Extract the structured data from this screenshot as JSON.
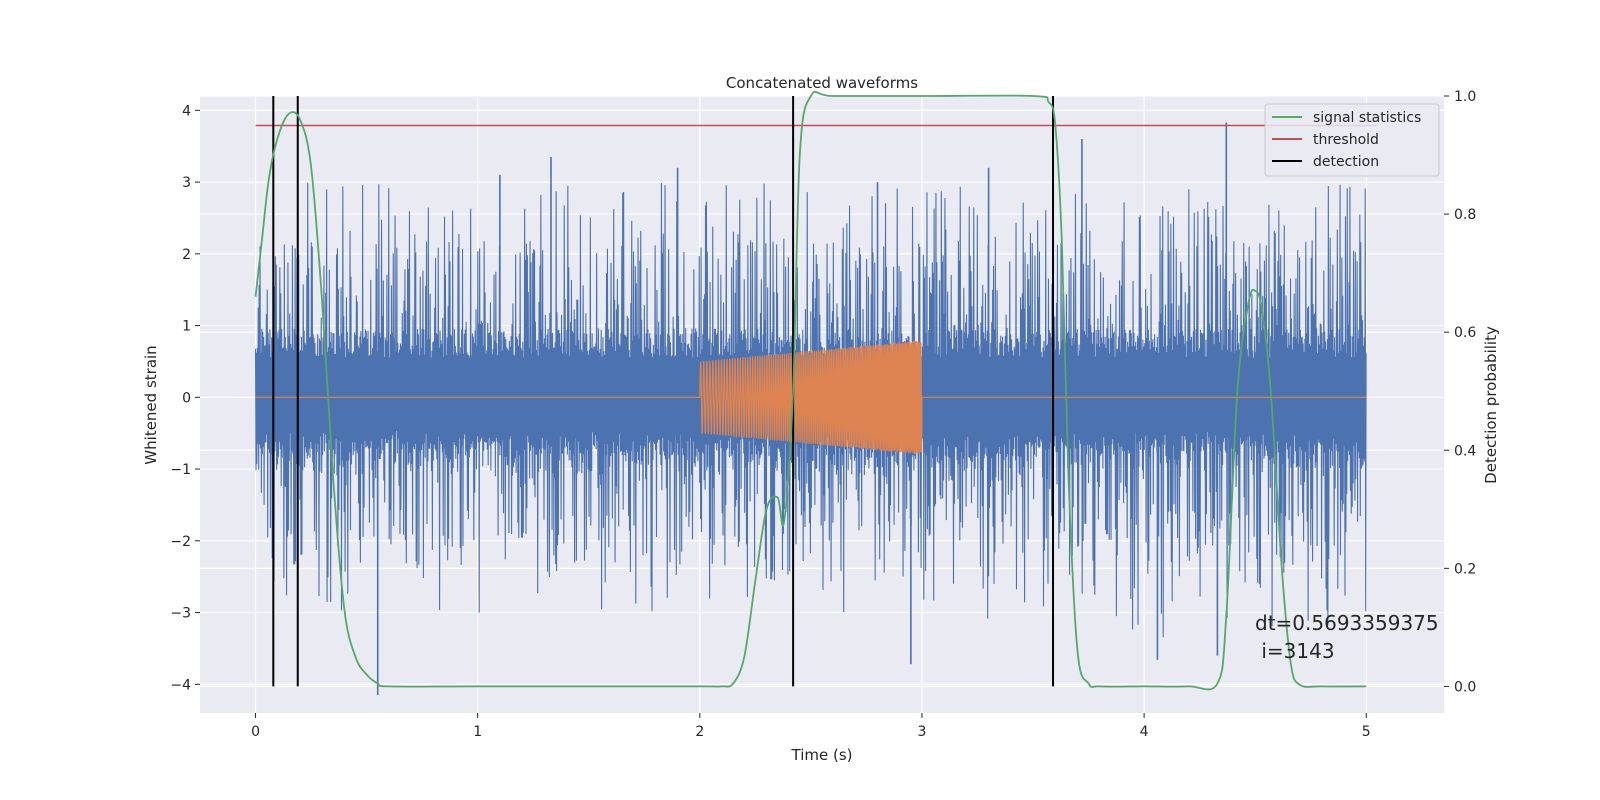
{
  "chart_data": {
    "type": "line",
    "title": "Concatenated waveforms",
    "xlabel": "Time (s)",
    "ylabel": "Whitened strain",
    "ylabel_right": "Detection probability",
    "xlim": [
      -0.25,
      5.35
    ],
    "ylim": [
      -4.4,
      4.2
    ],
    "ylim_right": [
      -0.045,
      1.0
    ],
    "x_ticks": [
      0,
      1,
      2,
      3,
      4,
      5
    ],
    "x_tick_labels": [
      "0",
      "1",
      "2",
      "3",
      "4",
      "5"
    ],
    "y_ticks": [
      -4,
      -3,
      -2,
      -1,
      0,
      1,
      2,
      3,
      4
    ],
    "y_tick_labels": [
      "−4",
      "−3",
      "−2",
      "−1",
      "0",
      "1",
      "2",
      "3",
      "4"
    ],
    "y_right_ticks": [
      0.0,
      0.2,
      0.4,
      0.6,
      0.8,
      1.0
    ],
    "y_right_tick_labels": [
      "0.0",
      "0.2",
      "0.4",
      "0.6",
      "0.8",
      "1.0"
    ],
    "grid": true,
    "legend_position": "top-right",
    "series": [
      {
        "name": "signal statistics",
        "axis": "right",
        "color": "#55a868",
        "x": [
          0.0,
          0.03,
          0.06,
          0.1,
          0.15,
          0.2,
          0.25,
          0.3,
          0.35,
          0.4,
          0.45,
          0.5,
          0.55,
          0.6,
          1.0,
          1.5,
          2.0,
          2.1,
          2.15,
          2.2,
          2.25,
          2.3,
          2.35,
          2.38,
          2.42,
          2.45,
          2.5,
          2.6,
          3.0,
          3.5,
          3.57,
          3.6,
          3.63,
          3.66,
          3.7,
          3.75,
          3.8,
          4.0,
          4.2,
          4.33,
          4.37,
          4.42,
          4.47,
          4.5,
          4.53,
          4.57,
          4.62,
          4.66,
          4.7,
          4.8,
          5.0
        ],
        "values": [
          0.66,
          0.76,
          0.86,
          0.93,
          0.97,
          0.96,
          0.88,
          0.65,
          0.35,
          0.13,
          0.05,
          0.02,
          0.005,
          0.0,
          0.0,
          0.0,
          0.0,
          0.0,
          0.005,
          0.05,
          0.18,
          0.3,
          0.32,
          0.28,
          0.5,
          0.9,
          1.0,
          1.0,
          1.0,
          1.0,
          0.99,
          0.95,
          0.75,
          0.35,
          0.06,
          0.005,
          0.0,
          0.0,
          0.0,
          0.005,
          0.12,
          0.5,
          0.65,
          0.67,
          0.64,
          0.5,
          0.2,
          0.04,
          0.003,
          0.0,
          0.0
        ]
      },
      {
        "name": "threshold",
        "axis": "right",
        "color": "#c44e52",
        "x": [
          0.0,
          5.05
        ],
        "values": [
          0.95,
          0.95
        ]
      },
      {
        "name": "detection",
        "axis": "right",
        "color": "#000000",
        "x": [
          0.08,
          0.19,
          2.42,
          3.59
        ],
        "values": [
          1.0,
          1.0,
          1.0,
          1.0
        ]
      },
      {
        "name": "",
        "axis": "left",
        "color": "#4c72b0",
        "x_range": [
          0.0,
          5.0
        ],
        "envelope": 2.5,
        "quiet_band": 0.92,
        "spikes": [
          [
            0.55,
            -4.15
          ],
          [
            1.1,
            3.1
          ],
          [
            1.33,
            3.35
          ],
          [
            1.9,
            3.2
          ],
          [
            2.8,
            3.0
          ],
          [
            3.3,
            3.2
          ],
          [
            3.72,
            3.6
          ],
          [
            4.37,
            3.83
          ],
          [
            4.33,
            -3.6
          ],
          [
            2.95,
            -3.72
          ],
          [
            4.06,
            -3.66
          ]
        ]
      },
      {
        "name": "",
        "axis": "left",
        "color": "#dd8452",
        "x_range": [
          0.0,
          5.0
        ],
        "chirp_start": 2.0,
        "chirp_end": 3.0,
        "amp_start": 0.5,
        "amp_end": 0.8
      }
    ],
    "annotation": [
      "dt=0.5693359375",
      " i=3143"
    ]
  }
}
